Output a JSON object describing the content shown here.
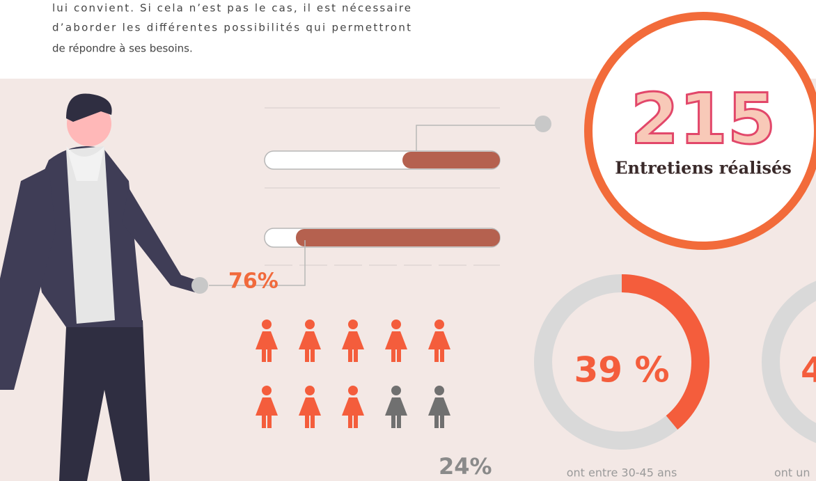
{
  "intro": {
    "lines": [
      "lui convient. Si cela n’est pas le cas, il est nécessaire",
      "d’aborder les différentes possibilités qui permettront",
      "de répondre à ses besoins."
    ]
  },
  "interviews": {
    "number": "215",
    "label": "Entretiens réalisés"
  },
  "gender": {
    "women": "76%",
    "men": "24%"
  },
  "donuts": [
    {
      "value": 39,
      "value_label": "39 %",
      "caption": "ont entre 30-45 ans"
    },
    {
      "value_label": "4",
      "caption": "ont un"
    }
  ]
}
